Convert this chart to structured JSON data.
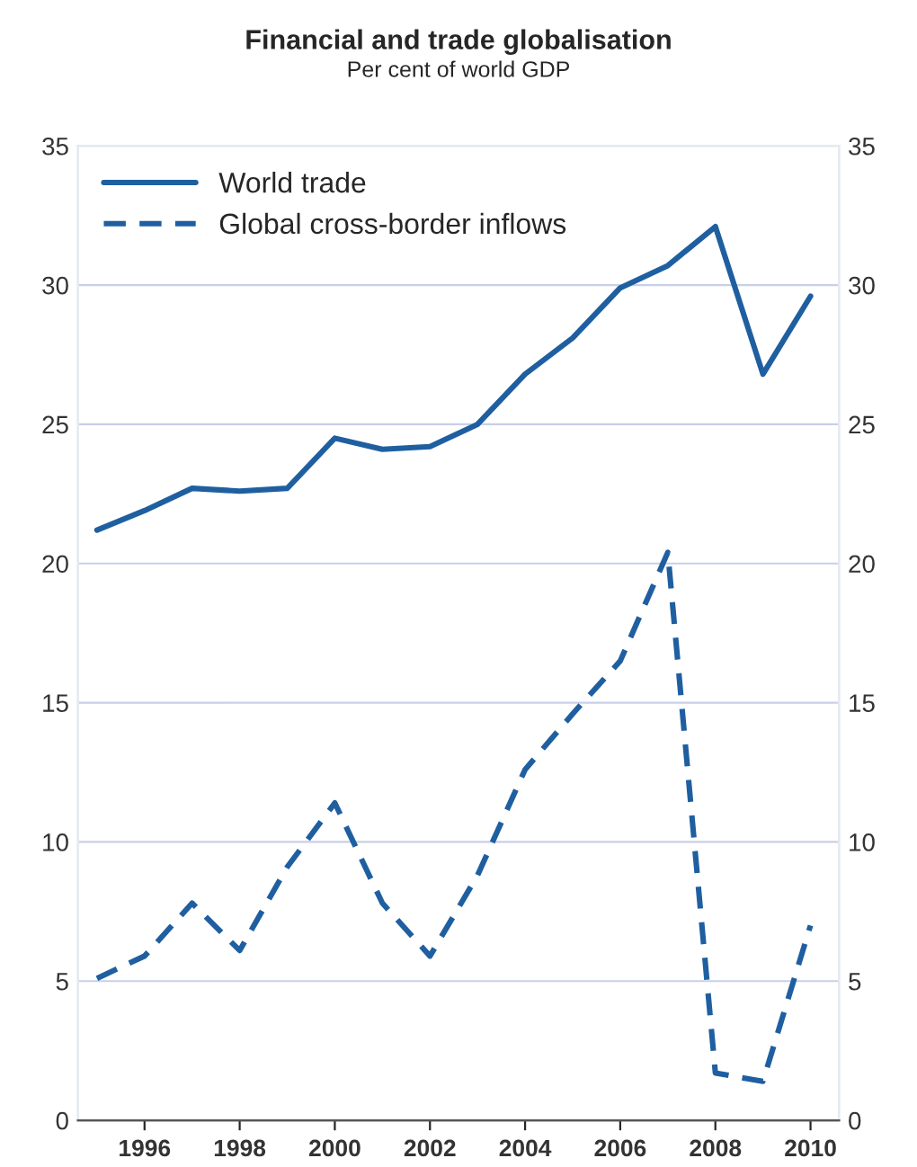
{
  "chart_data": {
    "type": "line",
    "title": "Financial and trade globalisation",
    "subtitle": "Per cent of world GDP",
    "x": [
      1995,
      1996,
      1997,
      1998,
      1999,
      2000,
      2001,
      2002,
      2003,
      2004,
      2005,
      2006,
      2007,
      2008,
      2009,
      2010
    ],
    "series": [
      {
        "name": "World trade",
        "color": "#1f5fa0",
        "line_style": "solid",
        "values": [
          21.2,
          21.9,
          22.7,
          22.6,
          22.7,
          24.5,
          24.1,
          24.2,
          25.0,
          26.8,
          28.1,
          29.9,
          30.7,
          32.1,
          26.8,
          29.6
        ]
      },
      {
        "name": "Global cross-border inflows",
        "color": "#1f5fa0",
        "line_style": "dashed",
        "values": [
          5.1,
          5.9,
          7.8,
          6.1,
          9.1,
          11.4,
          7.8,
          5.9,
          8.8,
          12.6,
          14.6,
          16.5,
          20.4,
          1.7,
          1.4,
          7.0
        ]
      }
    ],
    "xlim": [
      1994.6,
      2010.6
    ],
    "xticks": [
      1996,
      1998,
      2000,
      2002,
      2004,
      2006,
      2008,
      2010
    ],
    "ylim": [
      0,
      35
    ],
    "yticks": [
      0,
      5,
      10,
      15,
      20,
      25,
      30,
      35
    ],
    "y2lim": [
      0,
      35
    ],
    "y2ticks": [
      0,
      5,
      10,
      15,
      20,
      25,
      30,
      35
    ],
    "grid": "y",
    "legend": "top left",
    "marker": "none"
  }
}
